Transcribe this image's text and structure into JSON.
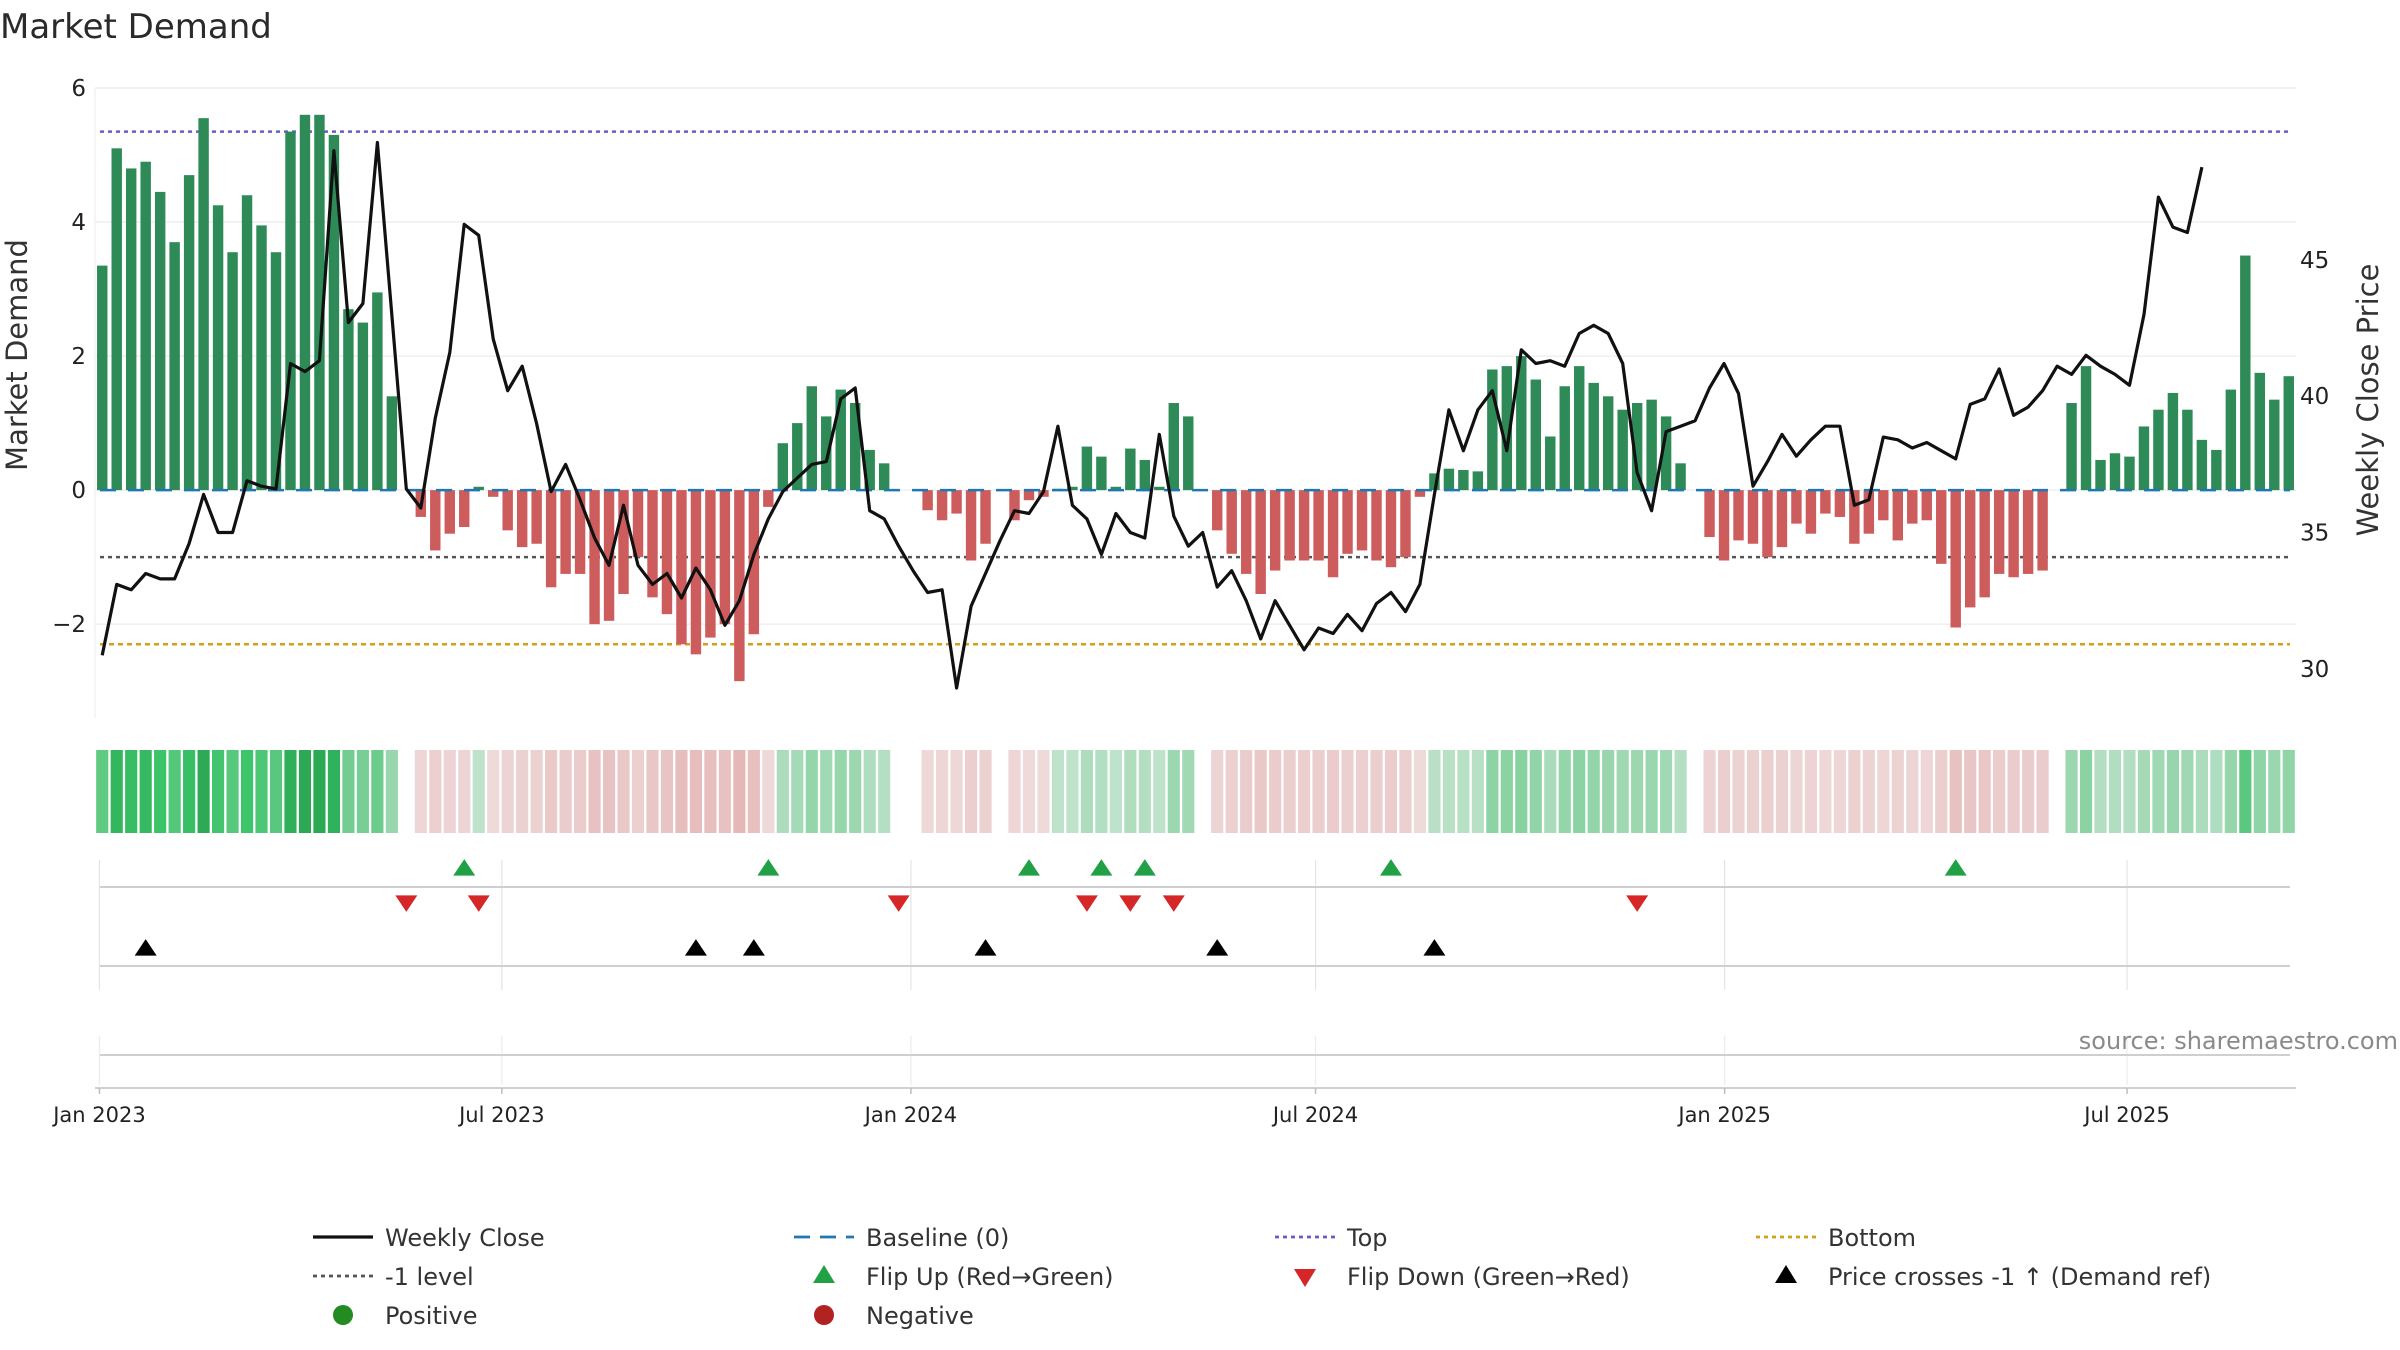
{
  "chart_data": {
    "type": "bar",
    "title": "Market Demand",
    "ylabel_left": "Market Demand",
    "ylabel_right": "Weekly Close Price",
    "ylim_left": [
      -3.4,
      6.0
    ],
    "ylim_right": [
      28.2,
      51.3
    ],
    "yticks_left": [
      6,
      4,
      2,
      0,
      -2
    ],
    "ytick_labels_left": [
      "6",
      "4",
      "2",
      "0",
      "−2"
    ],
    "yticks_right": [
      45,
      40,
      35,
      30
    ],
    "ytick_labels_right": [
      "45",
      "40",
      "35",
      "30"
    ],
    "x_start": "2022-12-30",
    "x_end": "2025-09-15",
    "xticks": [
      "2023-01-01",
      "2023-07-01",
      "2024-01-01",
      "2024-07-01",
      "2025-01-01",
      "2025-07-01"
    ],
    "xtick_labels": [
      "Jan 2023",
      "Jul 2023",
      "Jan 2024",
      "Jul 2024",
      "Jan 2025",
      "Jul 2025"
    ],
    "reference_lines": {
      "top": 5.35,
      "bottom": -2.3,
      "level_minus1": -1.0,
      "baseline": 0
    },
    "demand_values": [
      3.35,
      5.1,
      4.8,
      4.9,
      4.45,
      3.7,
      4.7,
      5.55,
      4.25,
      3.55,
      4.4,
      3.95,
      3.55,
      5.35,
      5.6,
      5.6,
      5.3,
      2.7,
      2.5,
      2.95,
      1.4,
      0,
      -0.4,
      -0.9,
      -0.65,
      -0.55,
      0.05,
      -0.1,
      -0.6,
      -0.85,
      -0.8,
      -1.45,
      -1.25,
      -1.25,
      -2.0,
      -1.95,
      -1.55,
      -1.0,
      -1.6,
      -1.85,
      -2.3,
      -2.45,
      -2.2,
      -2.0,
      -2.85,
      -2.15,
      -0.25,
      0.7,
      1.0,
      1.55,
      1.1,
      1.5,
      1.3,
      0.6,
      0.4,
      0,
      0,
      -0.3,
      -0.45,
      -0.35,
      -1.05,
      -0.8,
      0,
      -0.45,
      -0.15,
      -0.1,
      0.02,
      0.05,
      0.65,
      0.5,
      0.05,
      0.62,
      0.45,
      0.05,
      1.3,
      1.1,
      0,
      -0.6,
      -0.95,
      -1.25,
      -1.55,
      -1.2,
      -1.05,
      -1.05,
      -1.05,
      -1.3,
      -0.95,
      -0.9,
      -1.05,
      -1.15,
      -1.0,
      -0.1,
      0.25,
      0.32,
      0.3,
      0.28,
      1.8,
      1.85,
      2.0,
      1.65,
      0.8,
      1.55,
      1.85,
      1.6,
      1.4,
      1.2,
      1.3,
      1.35,
      1.1,
      0.4,
      0,
      -0.7,
      -1.05,
      -0.75,
      -0.8,
      -1.0,
      -0.85,
      -0.5,
      -0.65,
      -0.35,
      -0.4,
      -0.8,
      -0.65,
      -0.45,
      -0.75,
      -0.5,
      -0.45,
      -1.1,
      -2.05,
      -1.75,
      -1.6,
      -1.25,
      -1.3,
      -1.25,
      -1.2,
      0,
      1.3,
      1.85,
      0.45,
      0.55,
      0.5,
      0.95,
      1.2,
      1.45,
      1.2,
      0.75,
      0.6,
      1.5,
      3.5,
      1.75,
      1.35,
      1.7
    ],
    "close_values": [
      30.5,
      33.1,
      32.9,
      33.5,
      33.3,
      33.3,
      34.6,
      36.4,
      35.0,
      35.0,
      36.9,
      36.7,
      36.6,
      41.2,
      40.9,
      41.3,
      49.0,
      42.7,
      43.4,
      49.3,
      43.0,
      36.6,
      35.9,
      39.2,
      41.6,
      46.3,
      45.9,
      42.1,
      40.2,
      41.1,
      39.0,
      36.5,
      37.5,
      36.2,
      34.8,
      33.8,
      36.0,
      33.8,
      33.1,
      33.5,
      32.6,
      33.7,
      32.9,
      31.6,
      32.5,
      34.2,
      35.5,
      36.5,
      37.0,
      37.5,
      37.6,
      39.9,
      40.3,
      35.8,
      35.5,
      34.5,
      33.6,
      32.8,
      32.9,
      29.3,
      32.3,
      33.5,
      34.7,
      35.8,
      35.7,
      36.5,
      38.9,
      36.0,
      35.5,
      34.2,
      35.7,
      35.0,
      34.8,
      38.6,
      35.6,
      34.5,
      35.0,
      33.0,
      33.6,
      32.5,
      31.1,
      32.5,
      31.6,
      30.7,
      31.5,
      31.3,
      32.0,
      31.4,
      32.4,
      32.8,
      32.1,
      33.1,
      36.4,
      39.5,
      38.0,
      39.5,
      40.2,
      38.0,
      41.7,
      41.2,
      41.3,
      41.1,
      42.3,
      42.6,
      42.3,
      41.2,
      37.2,
      35.8,
      38.7,
      38.9,
      39.1,
      40.3,
      41.2,
      40.1,
      36.7,
      37.6,
      38.6,
      37.8,
      38.4,
      38.9,
      38.9,
      36.0,
      36.2,
      38.5,
      38.4,
      38.1,
      38.3,
      38.0,
      37.7,
      39.7,
      39.9,
      41.0,
      39.3,
      39.6,
      40.2,
      41.1,
      40.8,
      41.5,
      41.1,
      40.8,
      40.4,
      43.0,
      47.3,
      46.2,
      46.0,
      48.4
    ],
    "flip_up_weeks": [
      25,
      46,
      64,
      69,
      72,
      89,
      128
    ],
    "flip_down_weeks": [
      21,
      26,
      55,
      68,
      71,
      74,
      106
    ],
    "price_cross_weeks": [
      3,
      41,
      45,
      61,
      77,
      92
    ],
    "source": "source: sharemaestro.com",
    "legend": [
      {
        "label": "Weekly Close",
        "marker": "line",
        "color": "#111111"
      },
      {
        "label": "Baseline (0)",
        "marker": "dash",
        "color": "#1f77b4"
      },
      {
        "label": "Top",
        "marker": "dot",
        "color": "#6a5acd"
      },
      {
        "label": "Bottom",
        "marker": "dot",
        "color": "#d4a017"
      },
      {
        "label": "-1 level",
        "marker": "dot",
        "color": "#555555"
      },
      {
        "label": "Flip Up (Red→Green)",
        "marker": "triangle-up",
        "color": "#22a046"
      },
      {
        "label": "Flip Down (Green→Red)",
        "marker": "triangle-down",
        "color": "#d62728"
      },
      {
        "label": "Price crosses -1 ↑ (Demand ref)",
        "marker": "triangle-up",
        "color": "#000000"
      },
      {
        "label": "Positive",
        "marker": "circle",
        "color": "#228b22"
      },
      {
        "label": "Negative",
        "marker": "circle",
        "color": "#b22222"
      }
    ]
  },
  "colors": {
    "positive_bar": "#2e8b57",
    "negative_bar": "#cd5c5c",
    "close_line": "#111111",
    "baseline": "#1f77b4",
    "top": "#6a5acd",
    "bottom": "#d4a017",
    "level": "#555555",
    "flip_up": "#22a046",
    "flip_down": "#d62728",
    "cross": "#000000"
  }
}
